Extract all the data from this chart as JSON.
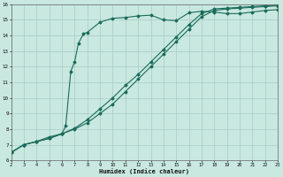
{
  "bg_color": "#c8e8e0",
  "grid_color": "#a8ccc4",
  "line_color": "#1a6b5a",
  "xlabel": "Humidex (Indice chaleur)",
  "xlim": [
    2,
    23
  ],
  "ylim": [
    6,
    16
  ],
  "xticks": [
    2,
    3,
    4,
    5,
    6,
    7,
    8,
    9,
    10,
    11,
    12,
    13,
    14,
    15,
    16,
    17,
    18,
    19,
    20,
    21,
    22,
    23
  ],
  "yticks": [
    6,
    7,
    8,
    9,
    10,
    11,
    12,
    13,
    14,
    15,
    16
  ],
  "line1_x": [
    2,
    3,
    4,
    5,
    6,
    7,
    8,
    9,
    10,
    11,
    12,
    13,
    14,
    15,
    16,
    17,
    18,
    19,
    20,
    21,
    22,
    23
  ],
  "line1_y": [
    6.5,
    7.0,
    7.2,
    7.4,
    7.7,
    8.05,
    8.6,
    9.3,
    10.0,
    10.8,
    11.5,
    12.3,
    13.1,
    13.9,
    14.7,
    15.4,
    15.7,
    15.75,
    15.8,
    15.85,
    15.9,
    15.95
  ],
  "line2_x": [
    2,
    3,
    4,
    5,
    6,
    7,
    8,
    9,
    10,
    11,
    12,
    13,
    14,
    15,
    16,
    17,
    18,
    19,
    20,
    21,
    22,
    23
  ],
  "line2_y": [
    6.5,
    7.0,
    7.2,
    7.4,
    7.7,
    8.0,
    8.4,
    9.0,
    9.6,
    10.4,
    11.2,
    12.0,
    12.8,
    13.6,
    14.4,
    15.2,
    15.6,
    15.7,
    15.75,
    15.8,
    15.85,
    15.9
  ],
  "line3_x": [
    2,
    3,
    4,
    5,
    6,
    6.3,
    6.7,
    7,
    7.3,
    7.7,
    8,
    9,
    10,
    11,
    12,
    13,
    14,
    15,
    16,
    17,
    18,
    19,
    20,
    21,
    22,
    23
  ],
  "line3_y": [
    6.5,
    7.0,
    7.2,
    7.5,
    7.7,
    8.2,
    11.7,
    12.3,
    13.5,
    14.1,
    14.2,
    14.85,
    15.1,
    15.15,
    15.25,
    15.3,
    15.0,
    14.95,
    15.45,
    15.55,
    15.5,
    15.4,
    15.4,
    15.5,
    15.6,
    15.65
  ]
}
